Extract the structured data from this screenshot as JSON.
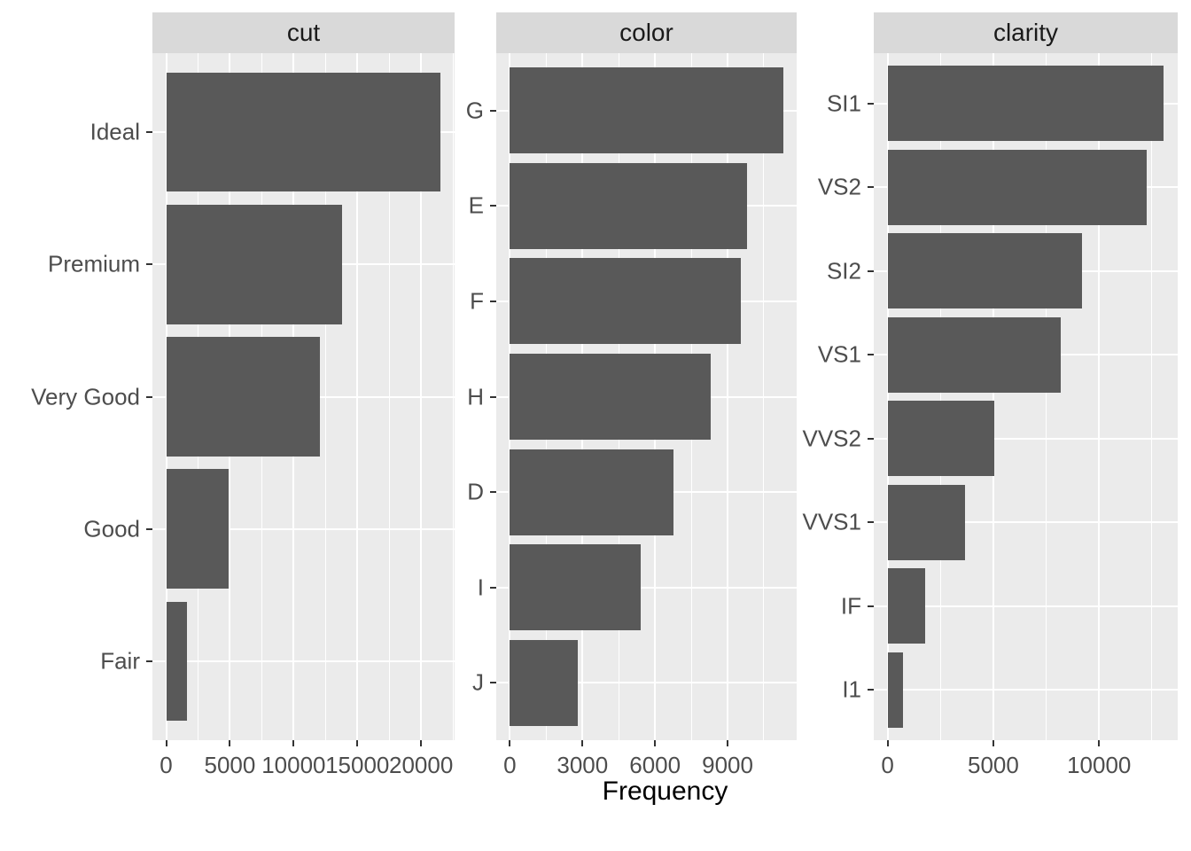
{
  "figure": {
    "xlabel": "Frequency",
    "colors": {
      "page_bg": "#FFFFFF",
      "panel_bg": "#EBEBEB",
      "strip_bg": "#D9D9D9",
      "bar": "#595959",
      "grid": "#FFFFFF",
      "tick_mark": "#333333",
      "axis_text": "#4D4D4D",
      "strip_text": "#1A1A1A",
      "axis_title_text": "#000000"
    },
    "legend": "none",
    "grid": "on"
  },
  "chart_data": [
    {
      "type": "bar",
      "orientation": "horizontal",
      "facet_label": "cut",
      "categories": [
        "Ideal",
        "Premium",
        "Very Good",
        "Good",
        "Fair"
      ],
      "values": [
        21551,
        13791,
        12082,
        4906,
        1610
      ],
      "x_ticks": [
        0,
        5000,
        10000,
        15000,
        20000
      ],
      "x_tick_labels": [
        "0",
        "5000",
        "10000",
        "15000",
        "20000"
      ],
      "x_major_step": 5000,
      "xlim": [
        -1078,
        22629
      ]
    },
    {
      "type": "bar",
      "orientation": "horizontal",
      "facet_label": "color",
      "categories": [
        "G",
        "E",
        "F",
        "H",
        "D",
        "I",
        "J"
      ],
      "values": [
        11292,
        9797,
        9542,
        8304,
        6775,
        5422,
        2808
      ],
      "x_ticks": [
        0,
        3000,
        6000,
        9000
      ],
      "x_tick_labels": [
        "0",
        "3000",
        "6000",
        "9000"
      ],
      "x_major_step": 3000,
      "xlim": [
        -565,
        11857
      ]
    },
    {
      "type": "bar",
      "orientation": "horizontal",
      "facet_label": "clarity",
      "categories": [
        "SI1",
        "VS2",
        "SI2",
        "VS1",
        "VVS2",
        "VVS1",
        "IF",
        "I1"
      ],
      "values": [
        13065,
        12258,
        9194,
        8171,
        5066,
        3655,
        1790,
        741
      ],
      "x_ticks": [
        0,
        5000,
        10000
      ],
      "x_tick_labels": [
        "0",
        "5000",
        "10000"
      ],
      "x_major_step": 5000,
      "xlim": [
        -653,
        13718
      ]
    }
  ]
}
